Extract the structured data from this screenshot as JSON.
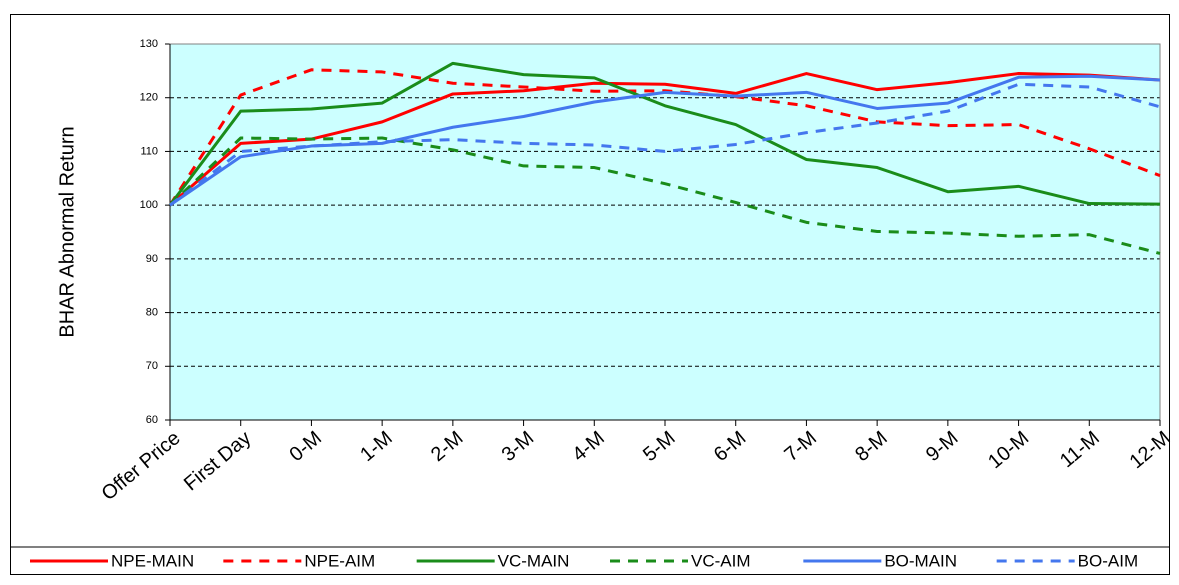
{
  "chart_data": {
    "type": "line",
    "y_label": "BHAR Abnormal Return",
    "categories": [
      "Offer Price",
      "First Day",
      "0-M",
      "1-M",
      "2-M",
      "3-M",
      "4-M",
      "5-M",
      "6-M",
      "7-M",
      "8-M",
      "9-M",
      "10-M",
      "11-M",
      "12-M"
    ],
    "series": [
      {
        "name": "NPE-MAIN",
        "color": "#ff0000",
        "dashed": false,
        "values": [
          100,
          111.5,
          112.3,
          115.5,
          120.7,
          121.3,
          122.7,
          122.5,
          120.8,
          124.5,
          121.5,
          122.8,
          124.5,
          124.2,
          123.3
        ]
      },
      {
        "name": "NPE-AIM",
        "color": "#ff0000",
        "dashed": true,
        "values": [
          100,
          120.5,
          125.2,
          124.8,
          122.7,
          122,
          121.2,
          121.3,
          120.2,
          118.5,
          115.5,
          114.8,
          115,
          110.5,
          105.5
        ]
      },
      {
        "name": "VC-MAIN",
        "color": "#1a8c1a",
        "dashed": false,
        "values": [
          100,
          117.5,
          117.9,
          119,
          126.4,
          124.3,
          123.7,
          118.5,
          115,
          108.5,
          107,
          102.5,
          103.5,
          100.3,
          100.2
        ]
      },
      {
        "name": "VC-AIM",
        "color": "#1a8c1a",
        "dashed": true,
        "values": [
          100,
          112.5,
          112.3,
          112.5,
          110.3,
          107.3,
          107,
          104,
          100.5,
          96.8,
          95.1,
          94.8,
          94.2,
          94.5,
          91
        ]
      },
      {
        "name": "BO-MAIN",
        "color": "#4477ee",
        "dashed": false,
        "values": [
          100,
          109,
          111,
          111.5,
          114.5,
          116.5,
          119.2,
          121,
          120.3,
          121,
          118,
          119,
          123.8,
          124,
          123.3
        ]
      },
      {
        "name": "BO-AIM",
        "color": "#4477ee",
        "dashed": true,
        "values": [
          100,
          110,
          111,
          111.8,
          112.2,
          111.5,
          111.2,
          110,
          111.3,
          113.5,
          115.3,
          117.5,
          122.5,
          122,
          118.3
        ]
      }
    ],
    "ylim": [
      60,
      130
    ],
    "yticks": [
      60,
      70,
      80,
      90,
      100,
      110,
      120,
      130
    ],
    "grid": true,
    "legend": "bottom",
    "background": "#ccffff"
  }
}
